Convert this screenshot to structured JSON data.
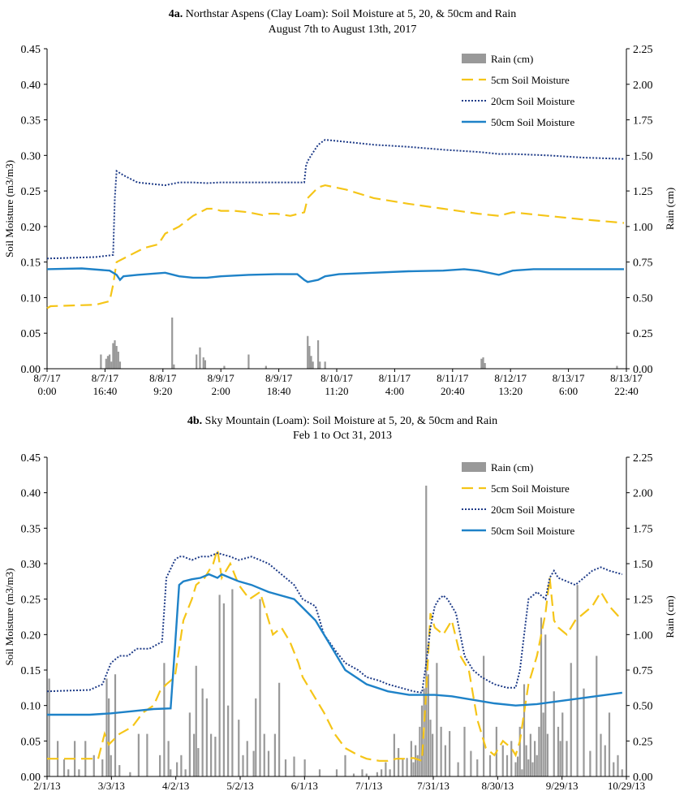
{
  "charts": [
    {
      "title_bold": "4a.",
      "title_rest": "Northstar Aspens (Clay Loam): Soil Moisture at 5, 20, & 50cm and Rain",
      "subtitle": "August 7th to August 13th, 2017",
      "ylabel_left": "Soil Moisture (m3/m3)",
      "ylabel_right": "Rain (cm)",
      "left_ticks": [
        "0.00",
        "0.05",
        "0.10",
        "0.15",
        "0.20",
        "0.25",
        "0.30",
        "0.35",
        "0.40",
        "0.45"
      ],
      "right_ticks": [
        "0.00",
        "0.25",
        "0.50",
        "0.75",
        "1.00",
        "1.25",
        "1.50",
        "1.75",
        "2.00",
        "2.25"
      ],
      "x_tick_top": [
        "8/7/17",
        "8/7/17",
        "8/8/17",
        "8/9/17",
        "8/9/17",
        "8/10/17",
        "8/11/17",
        "8/11/17",
        "8/12/17",
        "8/13/17",
        "8/13/17"
      ],
      "x_tick_bottom": [
        "0:00",
        "16:40",
        "9:20",
        "2:00",
        "18:40",
        "11:20",
        "4:00",
        "20:40",
        "13:20",
        "6:00",
        "22:40"
      ],
      "legend": [
        "Rain (cm)",
        "5cm Soil Moisture",
        "20cm Soil Moisture",
        "50cm Soil Moisture"
      ]
    },
    {
      "title_bold": "4b.",
      "title_rest": "Sky Mountain (Loam): Soil Moisture at 5, 20, & 50cm and Rain",
      "subtitle": "Feb 1 to Oct 31, 2013",
      "ylabel_left": "Soil Moisture (m3/m3)",
      "ylabel_right": "Rain (cm)",
      "left_ticks": [
        "0.00",
        "0.05",
        "0.10",
        "0.15",
        "0.20",
        "0.25",
        "0.30",
        "0.35",
        "0.40",
        "0.45"
      ],
      "right_ticks": [
        "0.00",
        "0.25",
        "0.50",
        "0.75",
        "1.00",
        "1.25",
        "1.50",
        "1.75",
        "2.00",
        "2.25"
      ],
      "x_tick_top": [
        "2/1/13",
        "3/3/13",
        "4/2/13",
        "5/2/13",
        "6/1/13",
        "7/1/13",
        "7/31/13",
        "8/30/13",
        "9/29/13",
        "10/29/13"
      ],
      "legend": [
        "Rain (cm)",
        "5cm Soil Moisture",
        "20cm Soil Moisture",
        "50cm Soil Moisture"
      ]
    }
  ],
  "colors": {
    "rain": "#999999",
    "sm5": "#f5c518",
    "sm20": "#1f3c88",
    "sm50": "#1e82c8",
    "axis": "#000000"
  },
  "chart_data": [
    {
      "type": "line",
      "title": "4a. Northstar Aspens (Clay Loam): Soil Moisture at 5, 20, & 50cm and Rain",
      "subtitle": "August 7th to August 13th, 2017",
      "x_unit": "hours since 8/7/17 0:00",
      "xlim": [
        0,
        166.7
      ],
      "ylim_left": [
        0,
        0.45
      ],
      "ylim_right": [
        0,
        2.25
      ],
      "ylabel": "Soil Moisture (m3/m3)",
      "ylabel_right": "Rain (cm)",
      "series": [
        {
          "name": "5cm Soil Moisture",
          "axis": "left",
          "style": "dashed",
          "x": [
            0,
            1,
            14,
            18,
            19,
            20,
            24,
            28,
            32,
            34,
            38,
            42,
            46,
            48,
            50,
            54,
            58,
            62,
            64,
            66,
            70,
            74,
            75,
            76,
            77,
            78,
            80,
            86,
            94,
            104,
            114,
            124,
            130,
            134,
            144,
            154,
            166
          ],
          "y": [
            0.085,
            0.088,
            0.09,
            0.095,
            0.118,
            0.15,
            0.16,
            0.17,
            0.175,
            0.19,
            0.2,
            0.215,
            0.225,
            0.225,
            0.222,
            0.222,
            0.22,
            0.216,
            0.218,
            0.218,
            0.215,
            0.22,
            0.24,
            0.245,
            0.25,
            0.255,
            0.258,
            0.252,
            0.24,
            0.232,
            0.225,
            0.218,
            0.215,
            0.22,
            0.215,
            0.21,
            0.205
          ]
        },
        {
          "name": "20cm Soil Moisture",
          "axis": "left",
          "style": "dotted",
          "x": [
            0,
            14,
            19,
            19.5,
            20,
            22,
            26,
            30,
            34,
            38,
            42,
            46,
            50,
            56,
            62,
            70,
            74,
            74.5,
            75,
            76,
            78,
            80,
            84,
            94,
            104,
            114,
            124,
            130,
            134,
            144,
            154,
            166
          ],
          "y": [
            0.155,
            0.157,
            0.16,
            0.24,
            0.278,
            0.272,
            0.262,
            0.26,
            0.258,
            0.262,
            0.262,
            0.261,
            0.262,
            0.262,
            0.262,
            0.262,
            0.262,
            0.285,
            0.292,
            0.3,
            0.315,
            0.322,
            0.32,
            0.315,
            0.312,
            0.308,
            0.305,
            0.302,
            0.302,
            0.3,
            0.297,
            0.295
          ]
        },
        {
          "name": "50cm Soil Moisture",
          "axis": "left",
          "style": "solid",
          "x": [
            0,
            10,
            18,
            20,
            21,
            22,
            26,
            34,
            38,
            42,
            46,
            50,
            58,
            66,
            72,
            74,
            75,
            78,
            80,
            84,
            94,
            104,
            114,
            120,
            124,
            130,
            134,
            140,
            150,
            160,
            166
          ],
          "y": [
            0.14,
            0.141,
            0.138,
            0.132,
            0.125,
            0.13,
            0.132,
            0.135,
            0.13,
            0.128,
            0.128,
            0.13,
            0.132,
            0.133,
            0.133,
            0.125,
            0.122,
            0.125,
            0.13,
            0.133,
            0.135,
            0.137,
            0.138,
            0.14,
            0.138,
            0.132,
            0.138,
            0.14,
            0.14,
            0.14,
            0.14
          ]
        },
        {
          "name": "Rain (cm)",
          "axis": "right",
          "style": "bar",
          "x": [
            15.5,
            17,
            17.5,
            18,
            18.5,
            19,
            19.5,
            20,
            20.5,
            21,
            36,
            36.5,
            43,
            44,
            45,
            45.5,
            51,
            58,
            63,
            75,
            75.5,
            76,
            76.5,
            78,
            78.5,
            80,
            125,
            125.5,
            126,
            164
          ],
          "y": [
            0.1,
            0.07,
            0.09,
            0.1,
            0.05,
            0.18,
            0.2,
            0.16,
            0.12,
            0.05,
            0.36,
            0.03,
            0.1,
            0.15,
            0.08,
            0.06,
            0.02,
            0.1,
            0.02,
            0.23,
            0.16,
            0.09,
            0.05,
            0.2,
            0.05,
            0.05,
            0.07,
            0.08,
            0.04,
            0.02
          ]
        }
      ]
    },
    {
      "type": "line",
      "title": "4b. Sky Mountain (Loam): Soil Moisture at 5, 20, & 50cm and Rain",
      "subtitle": "Feb 1 to Oct 31, 2013",
      "x_unit": "days since 2/1/13",
      "xlim": [
        0,
        272
      ],
      "ylim_left": [
        0,
        0.45
      ],
      "ylim_right": [
        0,
        2.25
      ],
      "ylabel": "Soil Moisture (m3/m3)",
      "ylabel_right": "Rain (cm)",
      "series": [
        {
          "name": "5cm Soil Moisture",
          "axis": "left",
          "style": "dashed",
          "x": [
            0,
            24,
            27,
            29,
            34,
            40,
            45,
            50,
            53,
            56,
            60,
            64,
            68,
            70,
            74,
            78,
            80,
            82,
            86,
            90,
            95,
            100,
            106,
            110,
            114,
            118,
            120,
            124,
            130,
            135,
            140,
            146,
            150,
            156,
            160,
            164,
            168,
            172,
            176,
            178,
            180,
            182,
            186,
            190,
            194,
            198,
            202,
            206,
            210,
            214,
            218,
            220,
            222,
            224,
            226,
            230,
            234,
            236,
            238,
            240,
            244,
            248,
            252,
            256,
            260,
            264,
            270
          ],
          "y": [
            0.025,
            0.025,
            0.06,
            0.045,
            0.06,
            0.07,
            0.09,
            0.1,
            0.12,
            0.13,
            0.14,
            0.22,
            0.25,
            0.27,
            0.28,
            0.3,
            0.32,
            0.28,
            0.3,
            0.27,
            0.25,
            0.26,
            0.2,
            0.21,
            0.19,
            0.16,
            0.14,
            0.12,
            0.09,
            0.06,
            0.04,
            0.03,
            0.025,
            0.022,
            0.022,
            0.025,
            0.025,
            0.026,
            0.022,
            0.12,
            0.23,
            0.21,
            0.2,
            0.22,
            0.17,
            0.15,
            0.08,
            0.04,
            0.03,
            0.05,
            0.04,
            0.03,
            0.05,
            0.09,
            0.13,
            0.17,
            0.23,
            0.28,
            0.22,
            0.21,
            0.2,
            0.22,
            0.23,
            0.24,
            0.26,
            0.24,
            0.22
          ]
        },
        {
          "name": "20cm Soil Moisture",
          "axis": "left",
          "style": "dotted",
          "x": [
            0,
            20,
            26,
            30,
            34,
            38,
            42,
            48,
            54,
            56,
            60,
            62,
            64,
            68,
            72,
            76,
            80,
            86,
            90,
            96,
            100,
            104,
            110,
            116,
            120,
            126,
            130,
            136,
            140,
            146,
            150,
            156,
            160,
            166,
            172,
            176,
            178,
            180,
            182,
            184,
            186,
            188,
            190,
            192,
            194,
            196,
            200,
            204,
            210,
            216,
            220,
            222,
            224,
            226,
            230,
            234,
            236,
            238,
            240,
            244,
            248,
            252,
            256,
            260,
            264,
            270
          ],
          "y": [
            0.12,
            0.122,
            0.13,
            0.16,
            0.17,
            0.17,
            0.18,
            0.18,
            0.19,
            0.28,
            0.305,
            0.31,
            0.31,
            0.305,
            0.31,
            0.31,
            0.315,
            0.31,
            0.305,
            0.31,
            0.305,
            0.3,
            0.285,
            0.27,
            0.25,
            0.24,
            0.2,
            0.175,
            0.16,
            0.15,
            0.14,
            0.135,
            0.13,
            0.125,
            0.12,
            0.118,
            0.16,
            0.21,
            0.24,
            0.25,
            0.255,
            0.25,
            0.24,
            0.23,
            0.2,
            0.17,
            0.15,
            0.14,
            0.13,
            0.125,
            0.125,
            0.15,
            0.2,
            0.25,
            0.26,
            0.25,
            0.28,
            0.29,
            0.28,
            0.275,
            0.27,
            0.28,
            0.29,
            0.295,
            0.29,
            0.285
          ]
        },
        {
          "name": "50cm Soil Moisture",
          "axis": "left",
          "style": "solid",
          "x": [
            0,
            20,
            30,
            40,
            50,
            58,
            60,
            62,
            64,
            68,
            72,
            76,
            80,
            82,
            86,
            90,
            96,
            104,
            116,
            126,
            134,
            140,
            150,
            160,
            170,
            176,
            182,
            190,
            200,
            210,
            220,
            230,
            240,
            250,
            260,
            270
          ],
          "y": [
            0.087,
            0.087,
            0.089,
            0.092,
            0.095,
            0.096,
            0.18,
            0.27,
            0.275,
            0.278,
            0.28,
            0.285,
            0.28,
            0.285,
            0.28,
            0.275,
            0.27,
            0.26,
            0.25,
            0.22,
            0.18,
            0.15,
            0.13,
            0.12,
            0.115,
            0.115,
            0.115,
            0.113,
            0.108,
            0.103,
            0.1,
            0.102,
            0.106,
            0.11,
            0.114,
            0.118
          ]
        },
        {
          "name": "Rain (cm)",
          "axis": "right",
          "style": "bar",
          "x": [
            1,
            5,
            8,
            10,
            13,
            15,
            18,
            22,
            26,
            28,
            29,
            30,
            32,
            34,
            39,
            43,
            47,
            53,
            55,
            57,
            58,
            61,
            63,
            65,
            67,
            69,
            70,
            71,
            73,
            75,
            77,
            79,
            81,
            83,
            85,
            87,
            90,
            92,
            94,
            97,
            98,
            100,
            102,
            104,
            107,
            109,
            112,
            116,
            121,
            128,
            136,
            140,
            144,
            148,
            150,
            155,
            157,
            159,
            161,
            163,
            165,
            167,
            169,
            171,
            172,
            173,
            174,
            175,
            176,
            177,
            178,
            179,
            180,
            181,
            183,
            185,
            187,
            189,
            193,
            196,
            199,
            202,
            205,
            208,
            211,
            214,
            216,
            218,
            220,
            221,
            222,
            223,
            224,
            225,
            226,
            227,
            228,
            229,
            230,
            231,
            232,
            233,
            234,
            235,
            238,
            240,
            241,
            242,
            244,
            246,
            249,
            252,
            255,
            258,
            260,
            262,
            264,
            266,
            268,
            270
          ],
          "y": [
            0.69,
            0.25,
            0.12,
            0.05,
            0.25,
            0.05,
            0.25,
            0.15,
            0.12,
            0.69,
            0.55,
            0.15,
            0.72,
            0.08,
            0.03,
            0.3,
            0.3,
            0.15,
            0.8,
            0.25,
            0.05,
            0.1,
            0.15,
            0.05,
            0.45,
            0.3,
            0.78,
            0.2,
            0.62,
            0.55,
            0.3,
            0.28,
            1.28,
            1.22,
            0.5,
            1.32,
            0.4,
            0.15,
            0.25,
            0.18,
            0.55,
            1.25,
            0.3,
            0.18,
            0.3,
            0.66,
            0.12,
            0.14,
            0.12,
            0.05,
            0.05,
            0.15,
            0.02,
            0.05,
            0.02,
            0.03,
            0.05,
            0.1,
            0.05,
            0.3,
            0.2,
            0.12,
            0.13,
            0.25,
            0.1,
            0.22,
            0.15,
            0.35,
            0.5,
            0.62,
            2.05,
            0.72,
            0.4,
            0.3,
            0.8,
            0.35,
            0.22,
            0.32,
            0.1,
            0.35,
            0.18,
            0.12,
            0.85,
            0.15,
            0.35,
            0.22,
            0.15,
            0.25,
            0.1,
            0.14,
            0.35,
            0.05,
            0.65,
            0.22,
            0.12,
            0.3,
            0.1,
            0.25,
            0.15,
            0.35,
            1.12,
            0.45,
            1.0,
            0.3,
            0.6,
            0.35,
            0.25,
            0.45,
            0.25,
            0.8,
            1.35,
            0.62,
            0.18,
            0.85,
            0.3,
            0.22,
            0.45,
            0.1,
            0.15,
            0.05
          ]
        }
      ]
    }
  ]
}
